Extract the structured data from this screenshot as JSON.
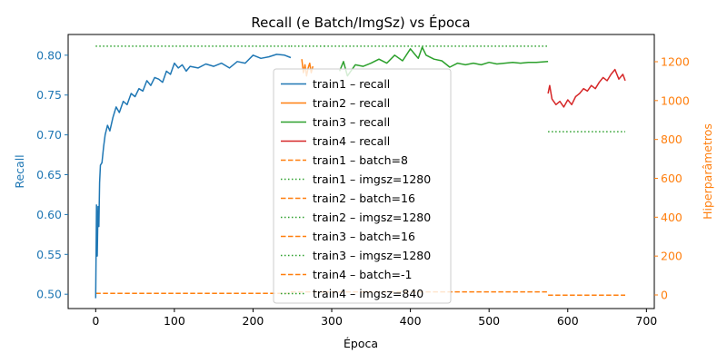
{
  "chart_data": {
    "type": "line",
    "title": "Recall (e Batch/ImgSz) vs Época",
    "xlabel": "Época",
    "ylabel": "Recall",
    "y2label": "Hiperparâmetros",
    "xlim": [
      -35,
      710
    ],
    "ylim": [
      0.482,
      0.826
    ],
    "y2lim": [
      -70,
      1340
    ],
    "xticks": [
      0,
      100,
      200,
      300,
      400,
      500,
      600,
      700
    ],
    "yticks": [
      0.5,
      0.55,
      0.6,
      0.65,
      0.7,
      0.75,
      0.8
    ],
    "ytick_labels": [
      "0.50",
      "0.55",
      "0.60",
      "0.65",
      "0.70",
      "0.75",
      "0.80"
    ],
    "y2ticks": [
      0,
      200,
      400,
      600,
      800,
      1000,
      1200
    ],
    "legend_position": "center",
    "colors": {
      "blue": "#1f77b4",
      "orange": "#ff7f0e",
      "green": "#2ca02c",
      "red": "#d62728",
      "left_axis": "#1f77b4",
      "right_axis": "#ff7f0e"
    },
    "recall_series": [
      {
        "name": "train1 – recall",
        "color": "#1f77b4",
        "x": [
          0,
          1,
          2,
          3,
          4,
          5,
          6,
          8,
          10,
          12,
          15,
          18,
          22,
          26,
          30,
          35,
          40,
          45,
          50,
          55,
          60,
          65,
          70,
          75,
          80,
          85,
          90,
          95,
          100,
          105,
          110,
          115,
          120,
          130,
          140,
          150,
          160,
          170,
          180,
          190,
          200,
          210,
          220,
          230,
          240,
          248
        ],
        "y": [
          0.495,
          0.612,
          0.548,
          0.61,
          0.585,
          0.64,
          0.662,
          0.665,
          0.685,
          0.7,
          0.712,
          0.705,
          0.722,
          0.735,
          0.728,
          0.742,
          0.738,
          0.752,
          0.748,
          0.758,
          0.755,
          0.768,
          0.762,
          0.772,
          0.77,
          0.766,
          0.78,
          0.776,
          0.79,
          0.784,
          0.788,
          0.78,
          0.786,
          0.784,
          0.789,
          0.786,
          0.79,
          0.784,
          0.792,
          0.79,
          0.8,
          0.796,
          0.798,
          0.801,
          0.8,
          0.797
        ]
      },
      {
        "name": "train2 – recall",
        "color": "#ff7f0e",
        "x": [
          262,
          264,
          266,
          268,
          270,
          272,
          274,
          276
        ],
        "y": [
          0.795,
          0.778,
          0.788,
          0.774,
          0.784,
          0.79,
          0.778,
          0.786
        ]
      },
      {
        "name": "train3 – recall",
        "color": "#2ca02c",
        "x": [
          310,
          315,
          320,
          330,
          340,
          350,
          360,
          370,
          380,
          390,
          400,
          405,
          410,
          415,
          420,
          430,
          440,
          450,
          460,
          470,
          480,
          490,
          500,
          510,
          520,
          530,
          540,
          550,
          560,
          575
        ],
        "y": [
          0.78,
          0.792,
          0.774,
          0.788,
          0.786,
          0.79,
          0.795,
          0.79,
          0.8,
          0.793,
          0.808,
          0.802,
          0.796,
          0.81,
          0.8,
          0.795,
          0.793,
          0.785,
          0.79,
          0.788,
          0.79,
          0.788,
          0.791,
          0.789,
          0.79,
          0.791,
          0.79,
          0.791,
          0.791,
          0.792
        ]
      },
      {
        "name": "train4 – recall",
        "color": "#d62728",
        "x": [
          575,
          577,
          580,
          585,
          590,
          595,
          600,
          605,
          610,
          615,
          620,
          625,
          630,
          635,
          640,
          645,
          650,
          655,
          660,
          665,
          670,
          673
        ],
        "y": [
          0.752,
          0.762,
          0.745,
          0.738,
          0.742,
          0.735,
          0.744,
          0.738,
          0.748,
          0.752,
          0.758,
          0.755,
          0.762,
          0.758,
          0.766,
          0.772,
          0.768,
          0.776,
          0.782,
          0.77,
          0.776,
          0.768
        ]
      }
    ],
    "hyperparam_series": [
      {
        "name": "train1 – batch=8",
        "style": "dashed",
        "color": "#ff7f0e",
        "x": [
          0,
          248
        ],
        "y": [
          8,
          8
        ]
      },
      {
        "name": "train1 – imgsz=1280",
        "style": "dotted",
        "color": "#2ca02c",
        "x": [
          0,
          248
        ],
        "y": [
          1280,
          1280
        ]
      },
      {
        "name": "train2 – batch=16",
        "style": "dashed",
        "color": "#ff7f0e",
        "x": [
          248,
          290
        ],
        "y": [
          16,
          16
        ]
      },
      {
        "name": "train2 – imgsz=1280",
        "style": "dotted",
        "color": "#2ca02c",
        "x": [
          248,
          290
        ],
        "y": [
          1280,
          1280
        ]
      },
      {
        "name": "train3 – batch=16",
        "style": "dashed",
        "color": "#ff7f0e",
        "x": [
          290,
          575
        ],
        "y": [
          16,
          16
        ]
      },
      {
        "name": "train3 – imgsz=1280",
        "style": "dotted",
        "color": "#2ca02c",
        "x": [
          290,
          575
        ],
        "y": [
          1280,
          1280
        ]
      },
      {
        "name": "train4 – batch=-1",
        "style": "dashed",
        "color": "#ff7f0e",
        "x": [
          575,
          673
        ],
        "y": [
          -1,
          -1
        ]
      },
      {
        "name": "train4 – imgsz=840",
        "style": "dotted",
        "color": "#2ca02c",
        "x": [
          575,
          673
        ],
        "y": [
          840,
          840
        ]
      }
    ]
  }
}
